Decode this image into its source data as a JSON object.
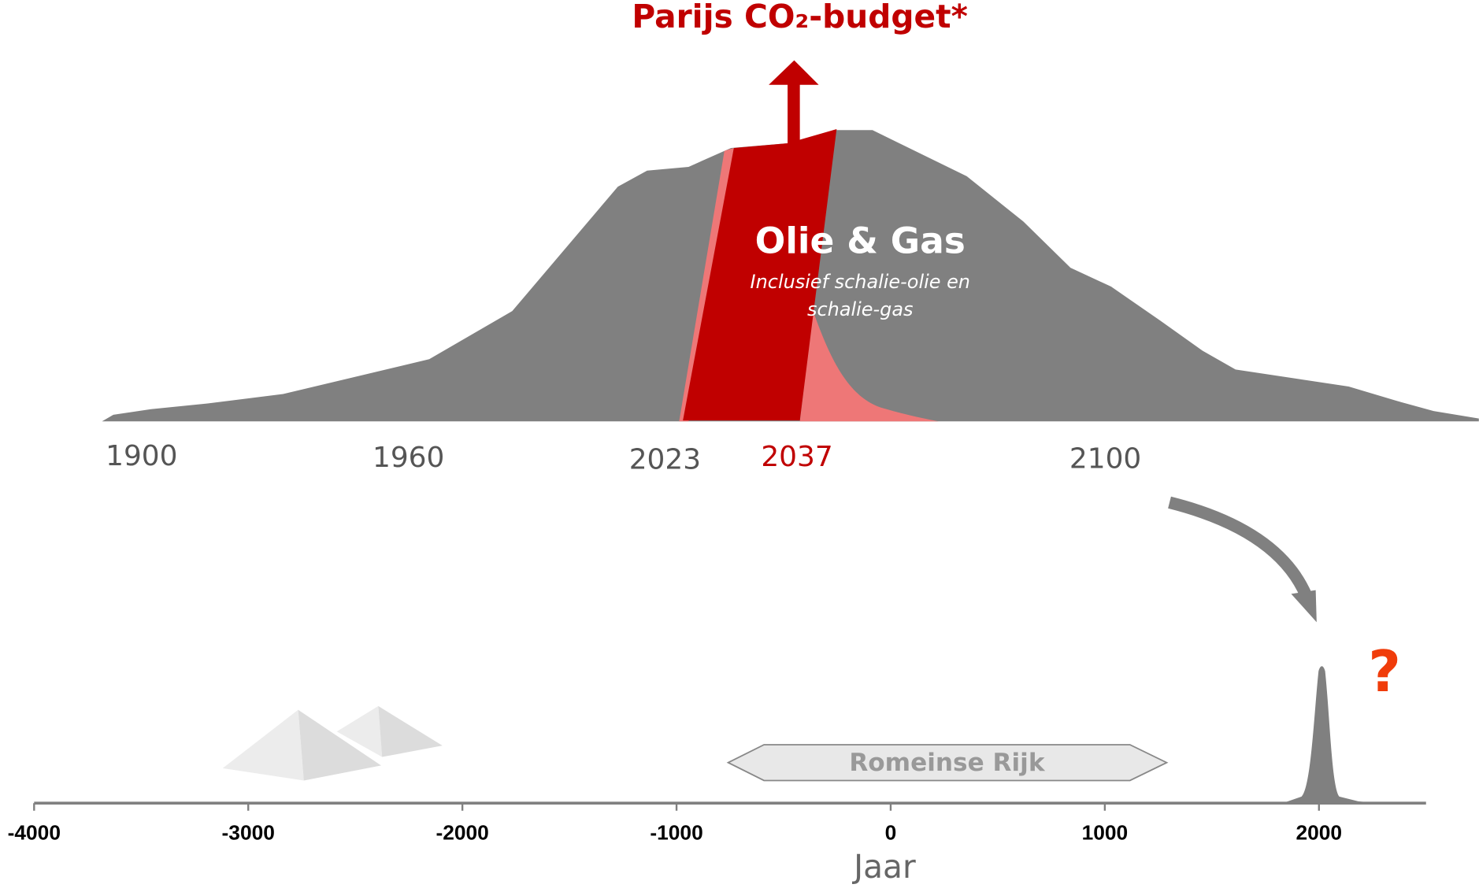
{
  "title": "Parijs CO₂-budget*",
  "upper": {
    "name": "Olie & Gas",
    "note": [
      "Inclusief schalie-olie en",
      "schalie-gas"
    ],
    "years": [
      "1900",
      "1960",
      "2023",
      "2037",
      "2100"
    ]
  },
  "chart_data": {
    "type": "timeline",
    "xlabel": "Jaar",
    "xlim": [
      -4000,
      2500
    ],
    "xticks": [
      -4000,
      -3000,
      -2000,
      -1000,
      0,
      1000,
      2000
    ],
    "annotations": [
      "Romeinse Rijk",
      "?"
    ]
  }
}
